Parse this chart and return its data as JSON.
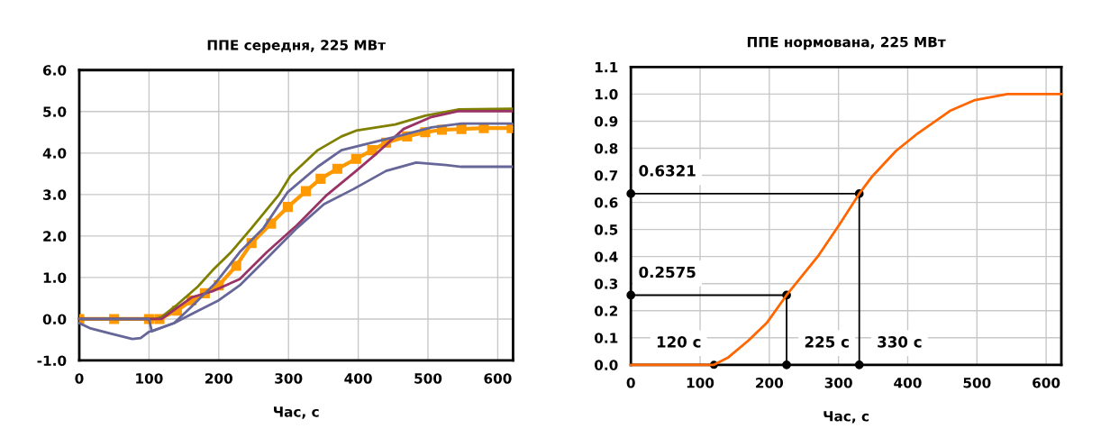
{
  "chart_data": [
    {
      "type": "line",
      "title": "ППЕ середня, 225 МВт",
      "xlabel": "Час, с",
      "xlim": [
        0,
        622
      ],
      "xticks": [
        0,
        100,
        200,
        300,
        400,
        500,
        600
      ],
      "ylim": [
        -1,
        6
      ],
      "yticks": [
        {
          "value": -1,
          "label": "-1.0"
        },
        {
          "value": 0,
          "label": "0.0"
        },
        {
          "value": 1,
          "label": "1.0"
        },
        {
          "value": 2,
          "label": "2.0"
        },
        {
          "value": 3,
          "label": "3.0"
        },
        {
          "value": 4,
          "label": "4.0"
        },
        {
          "value": 5,
          "label": "5.0"
        },
        {
          "value": 6,
          "label": "6.0"
        }
      ],
      "grid": true,
      "legend": false,
      "series": [
        {
          "color": "#808000",
          "x": [
            0,
            110,
            118,
            140,
            170,
            191,
            217,
            247,
            286,
            303,
            342,
            376,
            397,
            453,
            496,
            543,
            620
          ],
          "values": [
            0,
            0,
            0.05,
            0.34,
            0.78,
            1.17,
            1.6,
            2.19,
            2.99,
            3.46,
            4.07,
            4.4,
            4.54,
            4.69,
            4.9,
            5.05,
            5.07
          ]
        },
        {
          "color": "#993366",
          "x": [
            0,
            110,
            118,
            161,
            191,
            230,
            269,
            312,
            355,
            397,
            427,
            465,
            505,
            543,
            620
          ],
          "values": [
            0,
            0,
            0,
            0.52,
            0.67,
            0.96,
            1.61,
            2.26,
            2.99,
            3.57,
            4.0,
            4.58,
            4.87,
            5.01,
            5.01
          ]
        },
        {
          "color": "#666699",
          "x": [
            0,
            100,
            104,
            136,
            161,
            196,
            230,
            264,
            299,
            342,
            376,
            419,
            462,
            505,
            548,
            620
          ],
          "values": [
            0,
            0,
            -0.3,
            -0.1,
            0.3,
            0.88,
            1.61,
            2.19,
            3.06,
            3.67,
            4.07,
            4.25,
            4.43,
            4.62,
            4.71,
            4.71
          ]
        },
        {
          "color": "#666699",
          "x": [
            0,
            15,
            45,
            76,
            88,
            100,
            136,
            161,
            200,
            230,
            269,
            312,
            351,
            393,
            440,
            483,
            526,
            548,
            620
          ],
          "values": [
            -0.1,
            -0.22,
            -0.35,
            -0.48,
            -0.46,
            -0.31,
            -0.1,
            0.12,
            0.45,
            0.81,
            1.46,
            2.19,
            2.77,
            3.13,
            3.57,
            3.77,
            3.71,
            3.67,
            3.67
          ]
        },
        {
          "color": "#ff9900",
          "marker": "square",
          "x": [
            0,
            50,
            100,
            115,
            140,
            161,
            180,
            200,
            225,
            247,
            275,
            299,
            325,
            346,
            370,
            397,
            420,
            440,
            470,
            496,
            520,
            548,
            580,
            620
          ],
          "values": [
            0,
            0,
            0,
            0,
            0.2,
            0.45,
            0.62,
            0.81,
            1.28,
            1.83,
            2.3,
            2.7,
            3.08,
            3.38,
            3.62,
            3.86,
            4.07,
            4.25,
            4.4,
            4.5,
            4.56,
            4.58,
            4.6,
            4.6
          ]
        }
      ]
    },
    {
      "type": "line",
      "title": "ППЕ нормована, 225 МВт",
      "xlabel": "Час, с",
      "xlim": [
        0,
        622
      ],
      "xticks": [
        0,
        100,
        200,
        300,
        400,
        500,
        600
      ],
      "ylim": [
        0,
        1.1
      ],
      "yticks": [
        {
          "value": 0,
          "label": "0.0"
        },
        0.1,
        0.2,
        0.3,
        0.4,
        0.5,
        0.6,
        0.7,
        0.8,
        0.9,
        {
          "value": 1,
          "label": "1.0"
        },
        1.1
      ],
      "grid": true,
      "legend": false,
      "series": [
        {
          "color": "#ff6600",
          "x": [
            0,
            60,
            120,
            141,
            170,
            197,
            225,
            270,
            301,
            330,
            349,
            383,
            414,
            461,
            497,
            544,
            622
          ],
          "values": [
            0,
            0,
            0,
            0.028,
            0.09,
            0.157,
            0.2575,
            0.4,
            0.517,
            0.6321,
            0.697,
            0.79,
            0.854,
            0.938,
            0.978,
            1.0,
            1.0
          ]
        },
        {
          "color": "#000000",
          "marker": "circle",
          "x": [
            0,
            330,
            330
          ],
          "values": [
            0.6321,
            0.6321,
            0
          ]
        },
        {
          "color": "#000000",
          "marker": "circle",
          "x": [
            0,
            225,
            225
          ],
          "values": [
            0.2575,
            0.2575,
            0
          ]
        },
        {
          "type": "scatter",
          "color": "#000000",
          "marker": "circle",
          "x": [
            120
          ],
          "values": [
            0
          ]
        }
      ],
      "annotations": [
        {
          "text": "0.6321",
          "x": 0,
          "y": 0.6321
        },
        {
          "text": "0.2575",
          "x": 0,
          "y": 0.2575
        },
        {
          "text": "120 с",
          "x": 120,
          "y": 0
        },
        {
          "text": "225 с",
          "x": 225,
          "y": 0
        },
        {
          "text": "330 с",
          "x": 330,
          "y": 0
        }
      ]
    }
  ]
}
